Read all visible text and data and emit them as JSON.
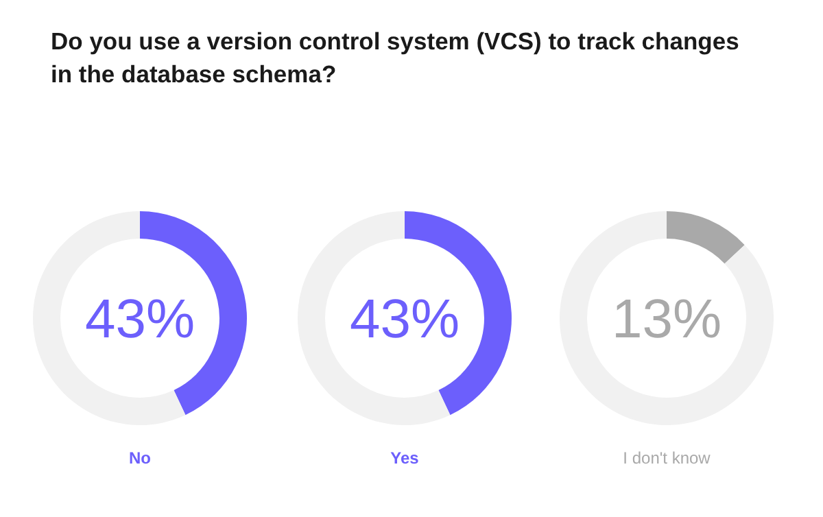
{
  "chart_data": [
    {
      "type": "donut",
      "title": "Do you use a version control system (VCS) to track changes in the database schema?",
      "categories": [
        null,
        null
      ],
      "values": [
        43,
        57
      ],
      "colors": [
        "#6c5ffc",
        "#f1f1f1"
      ],
      "annotations": [
        "43%"
      ],
      "xlabel": "No"
    },
    {
      "type": "donut",
      "categories": [
        null,
        null
      ],
      "values": [
        43,
        57
      ],
      "colors": [
        "#6c5ffc",
        "#f1f1f1"
      ],
      "annotations": [
        "43%"
      ],
      "xlabel": "Yes"
    },
    {
      "type": "donut",
      "categories": [
        null,
        null
      ],
      "values": [
        13,
        87
      ],
      "colors": [
        "#a9a9a9",
        "#f1f1f1"
      ],
      "annotations": [
        "13%"
      ],
      "xlabel": "I don't know"
    }
  ]
}
